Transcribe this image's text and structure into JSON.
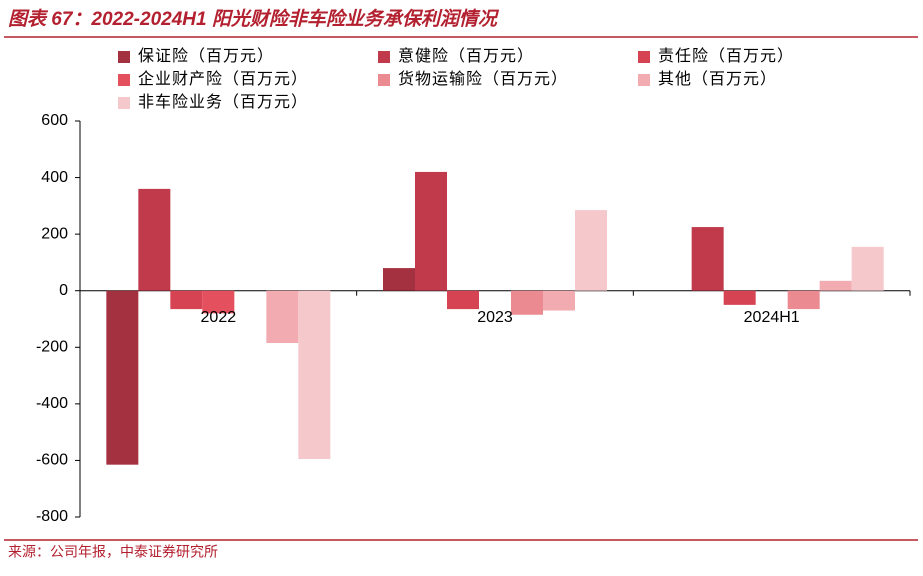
{
  "chart_data": {
    "type": "bar",
    "title": "图表 67：2022-2024H1 阳光财险非车险业务承保利润情况",
    "source": "来源：公司年报，中泰证券研究所",
    "categories": [
      "2022",
      "2023",
      "2024H1"
    ],
    "series": [
      {
        "name": "保证险（百万元）",
        "color": "#a3313f",
        "values": [
          -615,
          80,
          0
        ]
      },
      {
        "name": "意健险（百万元）",
        "color": "#c03a4b",
        "values": [
          360,
          420,
          225
        ]
      },
      {
        "name": "责任险（百万元）",
        "color": "#d64453",
        "values": [
          -65,
          -65,
          -50
        ]
      },
      {
        "name": "企业财产险（百万元）",
        "color": "#e4505d",
        "values": [
          -80,
          0,
          0
        ]
      },
      {
        "name": "货物运输险（百万元）",
        "color": "#eb8a91",
        "values": [
          0,
          -85,
          -65
        ]
      },
      {
        "name": "其他（百万元）",
        "color": "#f1abb1",
        "values": [
          -185,
          -70,
          35
        ]
      },
      {
        "name": "非车险业务（百万元）",
        "color": "#f5c8cc",
        "values": [
          -595,
          285,
          155
        ]
      }
    ],
    "ylim": [
      -800,
      600
    ],
    "yticks": [
      -800,
      -600,
      -400,
      -200,
      0,
      200,
      400,
      600
    ]
  }
}
